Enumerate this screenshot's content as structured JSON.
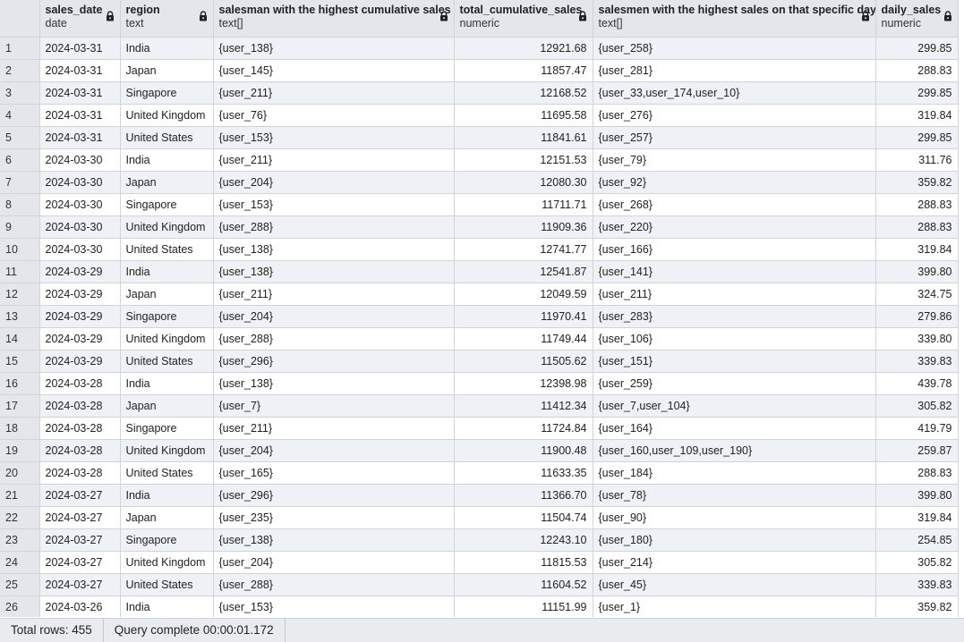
{
  "columns": [
    {
      "name": "sales_date",
      "type": "date"
    },
    {
      "name": "region",
      "type": "text"
    },
    {
      "name": "salesman with the highest cumulative sales",
      "type": "text[]"
    },
    {
      "name": "total_cumulative_sales",
      "type": "numeric"
    },
    {
      "name": "salesmen with the highest sales on that specific day",
      "type": "text[]"
    },
    {
      "name": "daily_sales",
      "type": "numeric"
    }
  ],
  "rows": [
    [
      "1",
      "2024-03-31",
      "India",
      "{user_138}",
      "12921.68",
      "{user_258}",
      "299.85"
    ],
    [
      "2",
      "2024-03-31",
      "Japan",
      "{user_145}",
      "11857.47",
      "{user_281}",
      "288.83"
    ],
    [
      "3",
      "2024-03-31",
      "Singapore",
      "{user_211}",
      "12168.52",
      "{user_33,user_174,user_10}",
      "299.85"
    ],
    [
      "4",
      "2024-03-31",
      "United Kingdom",
      "{user_76}",
      "11695.58",
      "{user_276}",
      "319.84"
    ],
    [
      "5",
      "2024-03-31",
      "United States",
      "{user_153}",
      "11841.61",
      "{user_257}",
      "299.85"
    ],
    [
      "6",
      "2024-03-30",
      "India",
      "{user_211}",
      "12151.53",
      "{user_79}",
      "311.76"
    ],
    [
      "7",
      "2024-03-30",
      "Japan",
      "{user_204}",
      "12080.30",
      "{user_92}",
      "359.82"
    ],
    [
      "8",
      "2024-03-30",
      "Singapore",
      "{user_153}",
      "11711.71",
      "{user_268}",
      "288.83"
    ],
    [
      "9",
      "2024-03-30",
      "United Kingdom",
      "{user_288}",
      "11909.36",
      "{user_220}",
      "288.83"
    ],
    [
      "10",
      "2024-03-30",
      "United States",
      "{user_138}",
      "12741.77",
      "{user_166}",
      "319.84"
    ],
    [
      "11",
      "2024-03-29",
      "India",
      "{user_138}",
      "12541.87",
      "{user_141}",
      "399.80"
    ],
    [
      "12",
      "2024-03-29",
      "Japan",
      "{user_211}",
      "12049.59",
      "{user_211}",
      "324.75"
    ],
    [
      "13",
      "2024-03-29",
      "Singapore",
      "{user_204}",
      "11970.41",
      "{user_283}",
      "279.86"
    ],
    [
      "14",
      "2024-03-29",
      "United Kingdom",
      "{user_288}",
      "11749.44",
      "{user_106}",
      "339.80"
    ],
    [
      "15",
      "2024-03-29",
      "United States",
      "{user_296}",
      "11505.62",
      "{user_151}",
      "339.83"
    ],
    [
      "16",
      "2024-03-28",
      "India",
      "{user_138}",
      "12398.98",
      "{user_259}",
      "439.78"
    ],
    [
      "17",
      "2024-03-28",
      "Japan",
      "{user_7}",
      "11412.34",
      "{user_7,user_104}",
      "305.82"
    ],
    [
      "18",
      "2024-03-28",
      "Singapore",
      "{user_211}",
      "11724.84",
      "{user_164}",
      "419.79"
    ],
    [
      "19",
      "2024-03-28",
      "United Kingdom",
      "{user_204}",
      "11900.48",
      "{user_160,user_109,user_190}",
      "259.87"
    ],
    [
      "20",
      "2024-03-28",
      "United States",
      "{user_165}",
      "11633.35",
      "{user_184}",
      "288.83"
    ],
    [
      "21",
      "2024-03-27",
      "India",
      "{user_296}",
      "11366.70",
      "{user_78}",
      "399.80"
    ],
    [
      "22",
      "2024-03-27",
      "Japan",
      "{user_235}",
      "11504.74",
      "{user_90}",
      "319.84"
    ],
    [
      "23",
      "2024-03-27",
      "Singapore",
      "{user_138}",
      "12243.10",
      "{user_180}",
      "254.85"
    ],
    [
      "24",
      "2024-03-27",
      "United Kingdom",
      "{user_204}",
      "11815.53",
      "{user_214}",
      "305.82"
    ],
    [
      "25",
      "2024-03-27",
      "United States",
      "{user_288}",
      "11604.52",
      "{user_45}",
      "339.83"
    ],
    [
      "26",
      "2024-03-26",
      "India",
      "{user_153}",
      "11151.99",
      "{user_1}",
      "359.82"
    ]
  ],
  "status": {
    "total_rows": "Total rows: 455",
    "query_time": "Query complete 00:00:01.172"
  },
  "colors": {
    "header_bg": "#e3e6ea",
    "row_stripe": "#eef1f5",
    "grid_line": "#d0d4da"
  },
  "icons": {
    "column_lock": "lock-icon"
  }
}
